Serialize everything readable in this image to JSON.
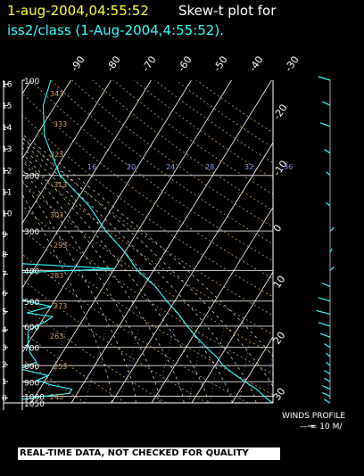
{
  "title": {
    "time": "1-aug-2004,04:55:52",
    "rest": "Skew-t plot for",
    "line2": "iss2/class (1-Aug-2004,4:55:52)."
  },
  "colors": {
    "background": "#000000",
    "title_time": "#ffff33",
    "title_line2": "#33ffff",
    "sounding": "#33ffff",
    "isotherm": "#ffffff",
    "dry_adiabat": "#d4a060",
    "moist_adiabat": "#e0e0e0",
    "mixing_ratio": "#8899ff"
  },
  "chart_data": {
    "type": "line",
    "subtype": "skew-t log-p diagram",
    "title": "1-aug-2004,04:55:52  Skew-t plot for iss2/class (1-Aug-2004,4:55:52).",
    "altitude_axis": {
      "label": "km",
      "ticks": [
        0,
        1,
        2,
        3,
        4,
        5,
        6,
        7,
        8,
        9,
        10,
        11,
        12,
        13,
        14,
        15,
        16
      ]
    },
    "pressure_axis": {
      "label": "hPa",
      "ticks": [
        100,
        200,
        300,
        400,
        500,
        600,
        700,
        800,
        900,
        1000,
        1050
      ],
      "log_scale": true
    },
    "isotherm_labels": [
      "-90",
      "-80",
      "-70",
      "-60",
      "-50",
      "-40",
      "-30",
      "-20",
      "-10",
      "0",
      "10",
      "20",
      "30"
    ],
    "theta_labels": [
      "343",
      "333",
      "323",
      "313",
      "303",
      "293",
      "283",
      "273",
      "263",
      "253",
      "243"
    ],
    "mixing_ratio_labels": [
      "16",
      "20",
      "24",
      "28",
      "32",
      "36"
    ],
    "moist_labels": [
      "2.0",
      "0.4",
      "0.4",
      "12.0"
    ],
    "pressure_range": [
      1050,
      100
    ],
    "temperature_range": [
      -90,
      30
    ],
    "series": [
      {
        "name": "temperature",
        "points": [
          [
            100,
            -75
          ],
          [
            120,
            -73
          ],
          [
            150,
            -68
          ],
          [
            200,
            -58
          ],
          [
            250,
            -46
          ],
          [
            300,
            -38
          ],
          [
            350,
            -30
          ],
          [
            400,
            -24
          ],
          [
            450,
            -17
          ],
          [
            500,
            -12
          ],
          [
            550,
            -7
          ],
          [
            600,
            -3
          ],
          [
            650,
            1
          ],
          [
            700,
            5
          ],
          [
            750,
            9
          ],
          [
            800,
            12
          ],
          [
            850,
            16
          ],
          [
            900,
            20
          ],
          [
            950,
            24
          ],
          [
            1000,
            27
          ],
          [
            1050,
            30
          ]
        ]
      },
      {
        "name": "dewpoint",
        "points": [
          [
            100,
            -88
          ],
          [
            115,
            -82
          ],
          [
            130,
            -86
          ],
          [
            160,
            -86
          ],
          [
            200,
            -83
          ],
          [
            240,
            -80
          ],
          [
            250,
            -68
          ],
          [
            270,
            -82
          ],
          [
            300,
            -80
          ],
          [
            350,
            -79
          ],
          [
            380,
            -55
          ],
          [
            395,
            -30
          ],
          [
            410,
            -60
          ],
          [
            440,
            -63
          ],
          [
            470,
            -52
          ],
          [
            500,
            -47
          ],
          [
            520,
            -40
          ],
          [
            545,
            -45
          ],
          [
            560,
            -38
          ],
          [
            580,
            -39
          ],
          [
            620,
            -42
          ],
          [
            680,
            -40
          ],
          [
            730,
            -38
          ],
          [
            780,
            -35
          ],
          [
            820,
            -38
          ],
          [
            860,
            -30
          ],
          [
            890,
            -32
          ],
          [
            920,
            -28
          ],
          [
            950,
            -22
          ],
          [
            980,
            -22
          ],
          [
            1000,
            -28
          ],
          [
            1030,
            -34
          ],
          [
            1050,
            -40
          ]
        ]
      }
    ],
    "winds_profile": {
      "label": "WINDS PROFILE",
      "scale": "— = 10 M/",
      "barbs": [
        [
          100,
          -6
        ],
        [
          120,
          -4
        ],
        [
          140,
          -5
        ],
        [
          170,
          -3
        ],
        [
          200,
          -2
        ],
        [
          250,
          -2
        ],
        [
          300,
          2
        ],
        [
          350,
          1
        ],
        [
          400,
          2
        ],
        [
          450,
          -4
        ],
        [
          500,
          -6
        ],
        [
          550,
          -7
        ],
        [
          600,
          -6
        ],
        [
          650,
          -5
        ],
        [
          700,
          -3
        ],
        [
          750,
          -2
        ],
        [
          800,
          -2
        ],
        [
          850,
          -3
        ],
        [
          900,
          -3
        ],
        [
          950,
          -4
        ],
        [
          1000,
          -4
        ],
        [
          1050,
          -3
        ]
      ]
    }
  },
  "disclaimer": "REAL-TIME DATA, NOT CHECKED FOR QUALITY"
}
